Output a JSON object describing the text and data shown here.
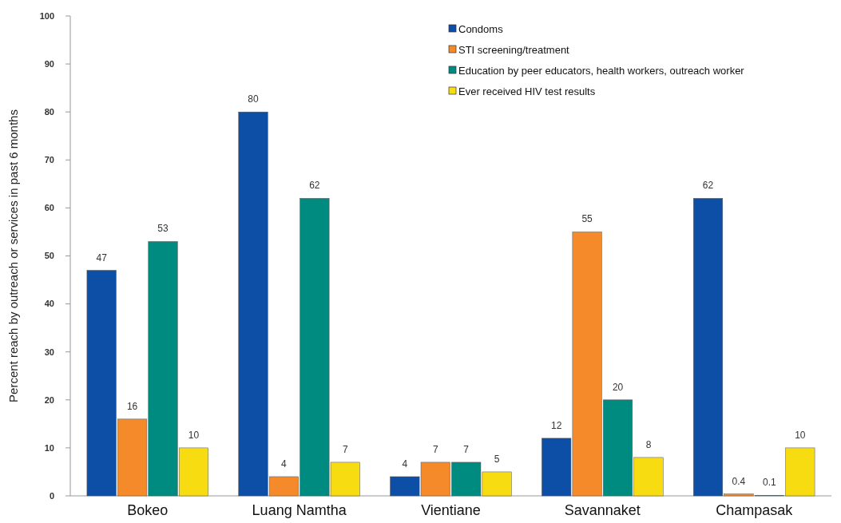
{
  "chart_data": {
    "type": "bar",
    "ylabel": "Percent reach by outreach or services in past 6 months",
    "categories": [
      "Bokeo",
      "Luang Namtha",
      "Vientiane",
      "Savannaket",
      "Champasak"
    ],
    "series": [
      {
        "name": "Condoms",
        "color": "#0d4ea6",
        "values": [
          47,
          80,
          4,
          12,
          62
        ]
      },
      {
        "name": "STI screening/treatment",
        "color": "#f58a2a",
        "values": [
          16,
          4,
          7,
          55,
          0.4
        ]
      },
      {
        "name": "Education by peer educators, health workers, outreach worker",
        "color": "#008b80",
        "values": [
          53,
          62,
          7,
          20,
          0.1
        ]
      },
      {
        "name": "Ever received HIV test results",
        "color": "#f7dc11",
        "values": [
          10,
          7,
          5,
          8,
          10
        ]
      }
    ],
    "ylim": [
      0,
      100
    ],
    "yticks": [
      0,
      10,
      20,
      30,
      40,
      50,
      60,
      70,
      80,
      90,
      100
    ],
    "data_labels": true,
    "legend": "top right",
    "grid": false
  }
}
